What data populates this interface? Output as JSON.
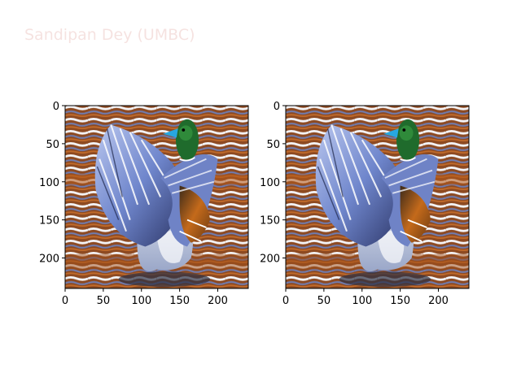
{
  "watermark": "Sandipan Dey (UMBC)",
  "chart_data": [
    {
      "type": "image",
      "subject": "mallard duck spreading its wings on rippled water",
      "xlim": [
        0,
        240
      ],
      "ylim": [
        240,
        0
      ],
      "xticks": [
        0,
        50,
        100,
        150,
        200
      ],
      "yticks": [
        0,
        50,
        100,
        150,
        200
      ]
    },
    {
      "type": "image",
      "subject": "mallard duck spreading its wings on rippled water",
      "xlim": [
        0,
        240
      ],
      "ylim": [
        240,
        0
      ],
      "xticks": [
        0,
        50,
        100,
        150,
        200
      ],
      "yticks": [
        0,
        50,
        100,
        150,
        200
      ]
    }
  ],
  "colors": {
    "water_dark": "#6b3a1e",
    "water_orange": "#b25a1c",
    "water_blue": "#7d88b8",
    "wing_blue": "#7f96d6",
    "head_green": "#1f6b2c",
    "bill_cyan": "#27a7e0",
    "chest_brown": "#c0681b"
  }
}
